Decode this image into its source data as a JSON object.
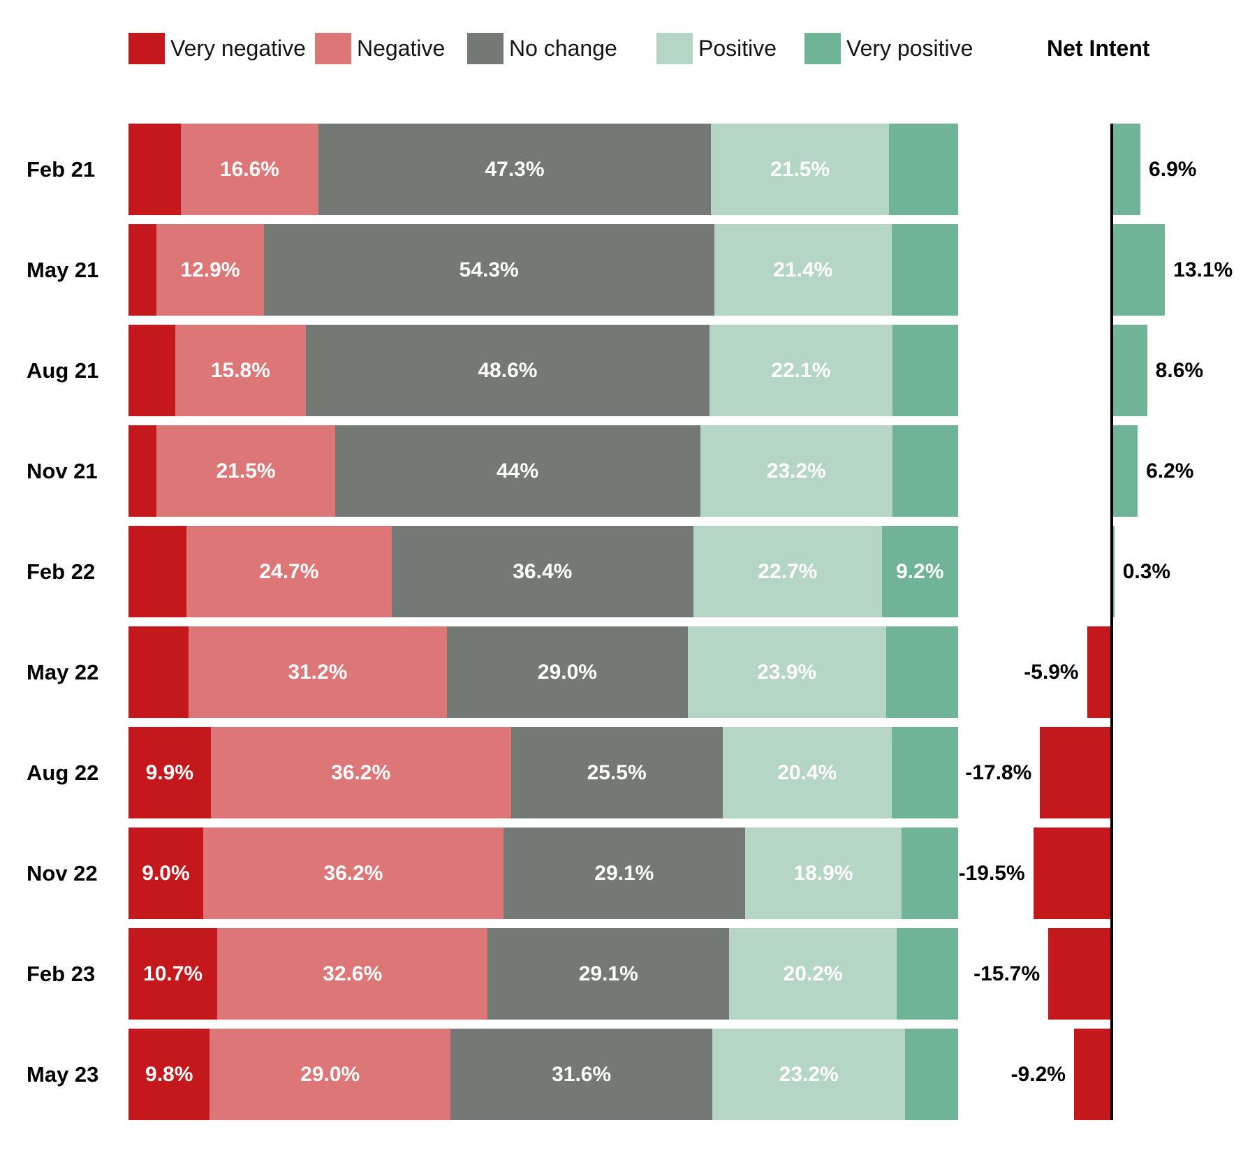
{
  "header": {
    "net_intent_label": "Net Intent"
  },
  "chart_data": {
    "type": "bar",
    "variant": "horizontal 100% stacked sentiment bars with diverging net-intent bar column",
    "title": "",
    "legend_position": "top",
    "grid": false,
    "xlim": [
      0,
      100
    ],
    "categories": [
      "Feb 21",
      "May 21",
      "Aug 21",
      "Nov 21",
      "Feb 22",
      "May 22",
      "Aug 22",
      "Nov 22",
      "Feb 23",
      "May 23"
    ],
    "series": [
      {
        "name": "Very negative",
        "color": "#c5181c",
        "values": [
          6.3,
          3.4,
          5.6,
          3.4,
          7.0,
          7.2,
          9.9,
          9.0,
          10.7,
          9.8
        ]
      },
      {
        "name": "Negative",
        "color": "#dd7676",
        "values": [
          16.6,
          12.9,
          15.8,
          21.5,
          24.7,
          31.2,
          36.2,
          36.2,
          32.6,
          29.0
        ]
      },
      {
        "name": "No change",
        "color": "#757975",
        "values": [
          47.3,
          54.3,
          48.6,
          44.0,
          36.4,
          29.0,
          25.5,
          29.1,
          29.1,
          31.6
        ]
      },
      {
        "name": "Positive",
        "color": "#b5d6c4",
        "values": [
          21.5,
          21.4,
          22.1,
          23.2,
          22.7,
          23.9,
          20.4,
          18.9,
          20.2,
          23.2
        ]
      },
      {
        "name": "Very positive",
        "color": "#70b497",
        "values": [
          8.3,
          8.0,
          7.9,
          7.9,
          9.2,
          8.7,
          8.0,
          6.8,
          7.4,
          6.4
        ]
      }
    ],
    "value_labels": [
      [
        "",
        "16.6%",
        "47.3%",
        "21.5%",
        ""
      ],
      [
        "",
        "12.9%",
        "54.3%",
        "21.4%",
        ""
      ],
      [
        "",
        "15.8%",
        "48.6%",
        "22.1%",
        ""
      ],
      [
        "",
        "21.5%",
        "44%",
        "23.2%",
        ""
      ],
      [
        "",
        "24.7%",
        "36.4%",
        "22.7%",
        "9.2%"
      ],
      [
        "",
        "31.2%",
        "29.0%",
        "23.9%",
        ""
      ],
      [
        "9.9%",
        "36.2%",
        "25.5%",
        "20.4%",
        ""
      ],
      [
        "9.0%",
        "36.2%",
        "29.1%",
        "18.9%",
        ""
      ],
      [
        "10.7%",
        "32.6%",
        "29.1%",
        "20.2%",
        ""
      ],
      [
        "9.8%",
        "29.0%",
        "31.6%",
        "23.2%",
        ""
      ]
    ],
    "net": {
      "name": "Net Intent",
      "values": [
        6.9,
        13.1,
        8.6,
        6.2,
        0.3,
        -5.9,
        -17.8,
        -19.5,
        -15.7,
        -9.2
      ],
      "labels": [
        "6.9%",
        "13.1%",
        "8.6%",
        "6.2%",
        "0.3%",
        "-5.9%",
        "-17.8%",
        "-19.5%",
        "-15.7%",
        "-9.2%"
      ],
      "positive_color": "#70b497",
      "negative_color": "#c5181c",
      "axis_color": "#000000"
    }
  }
}
